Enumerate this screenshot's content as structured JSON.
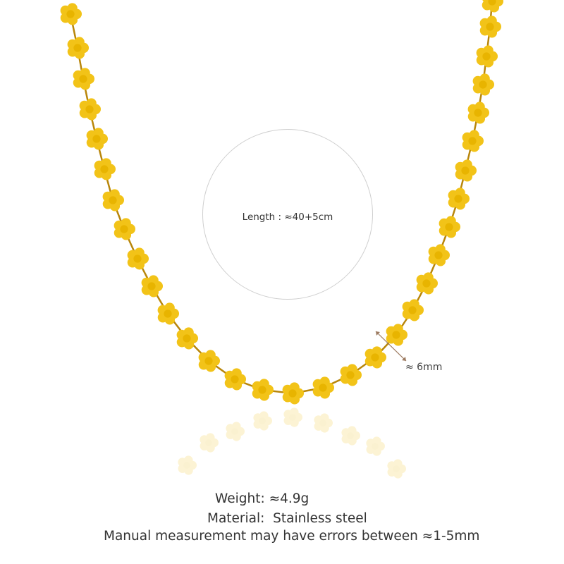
{
  "product": {
    "name": "gold flower link necklace",
    "metal_color": "#f2c318",
    "length_label": "Length : ≈40+5cm",
    "width_label": "≈ 6mm",
    "weight": "Weight: ≈4.9g",
    "material": "Material:  Stainless steel",
    "note": "Manual measurement may have errors between ≈1-5mm"
  }
}
